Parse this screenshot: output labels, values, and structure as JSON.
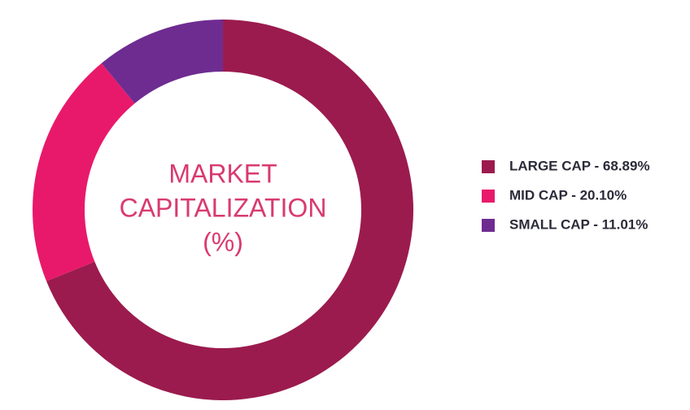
{
  "chart_data": {
    "type": "donut",
    "title": [
      "MARKET",
      "CAPITALIZATION",
      "(%)"
    ],
    "categories": [
      "LARGE CAP - 68.89%",
      "MID CAP - 20.10%",
      "SMALL CAP - 11.01%"
    ],
    "values": [
      68.89,
      20.1,
      11.01
    ],
    "colors": [
      "#9b1b4e",
      "#e8196a",
      "#6e2c91"
    ],
    "legend": "right"
  }
}
